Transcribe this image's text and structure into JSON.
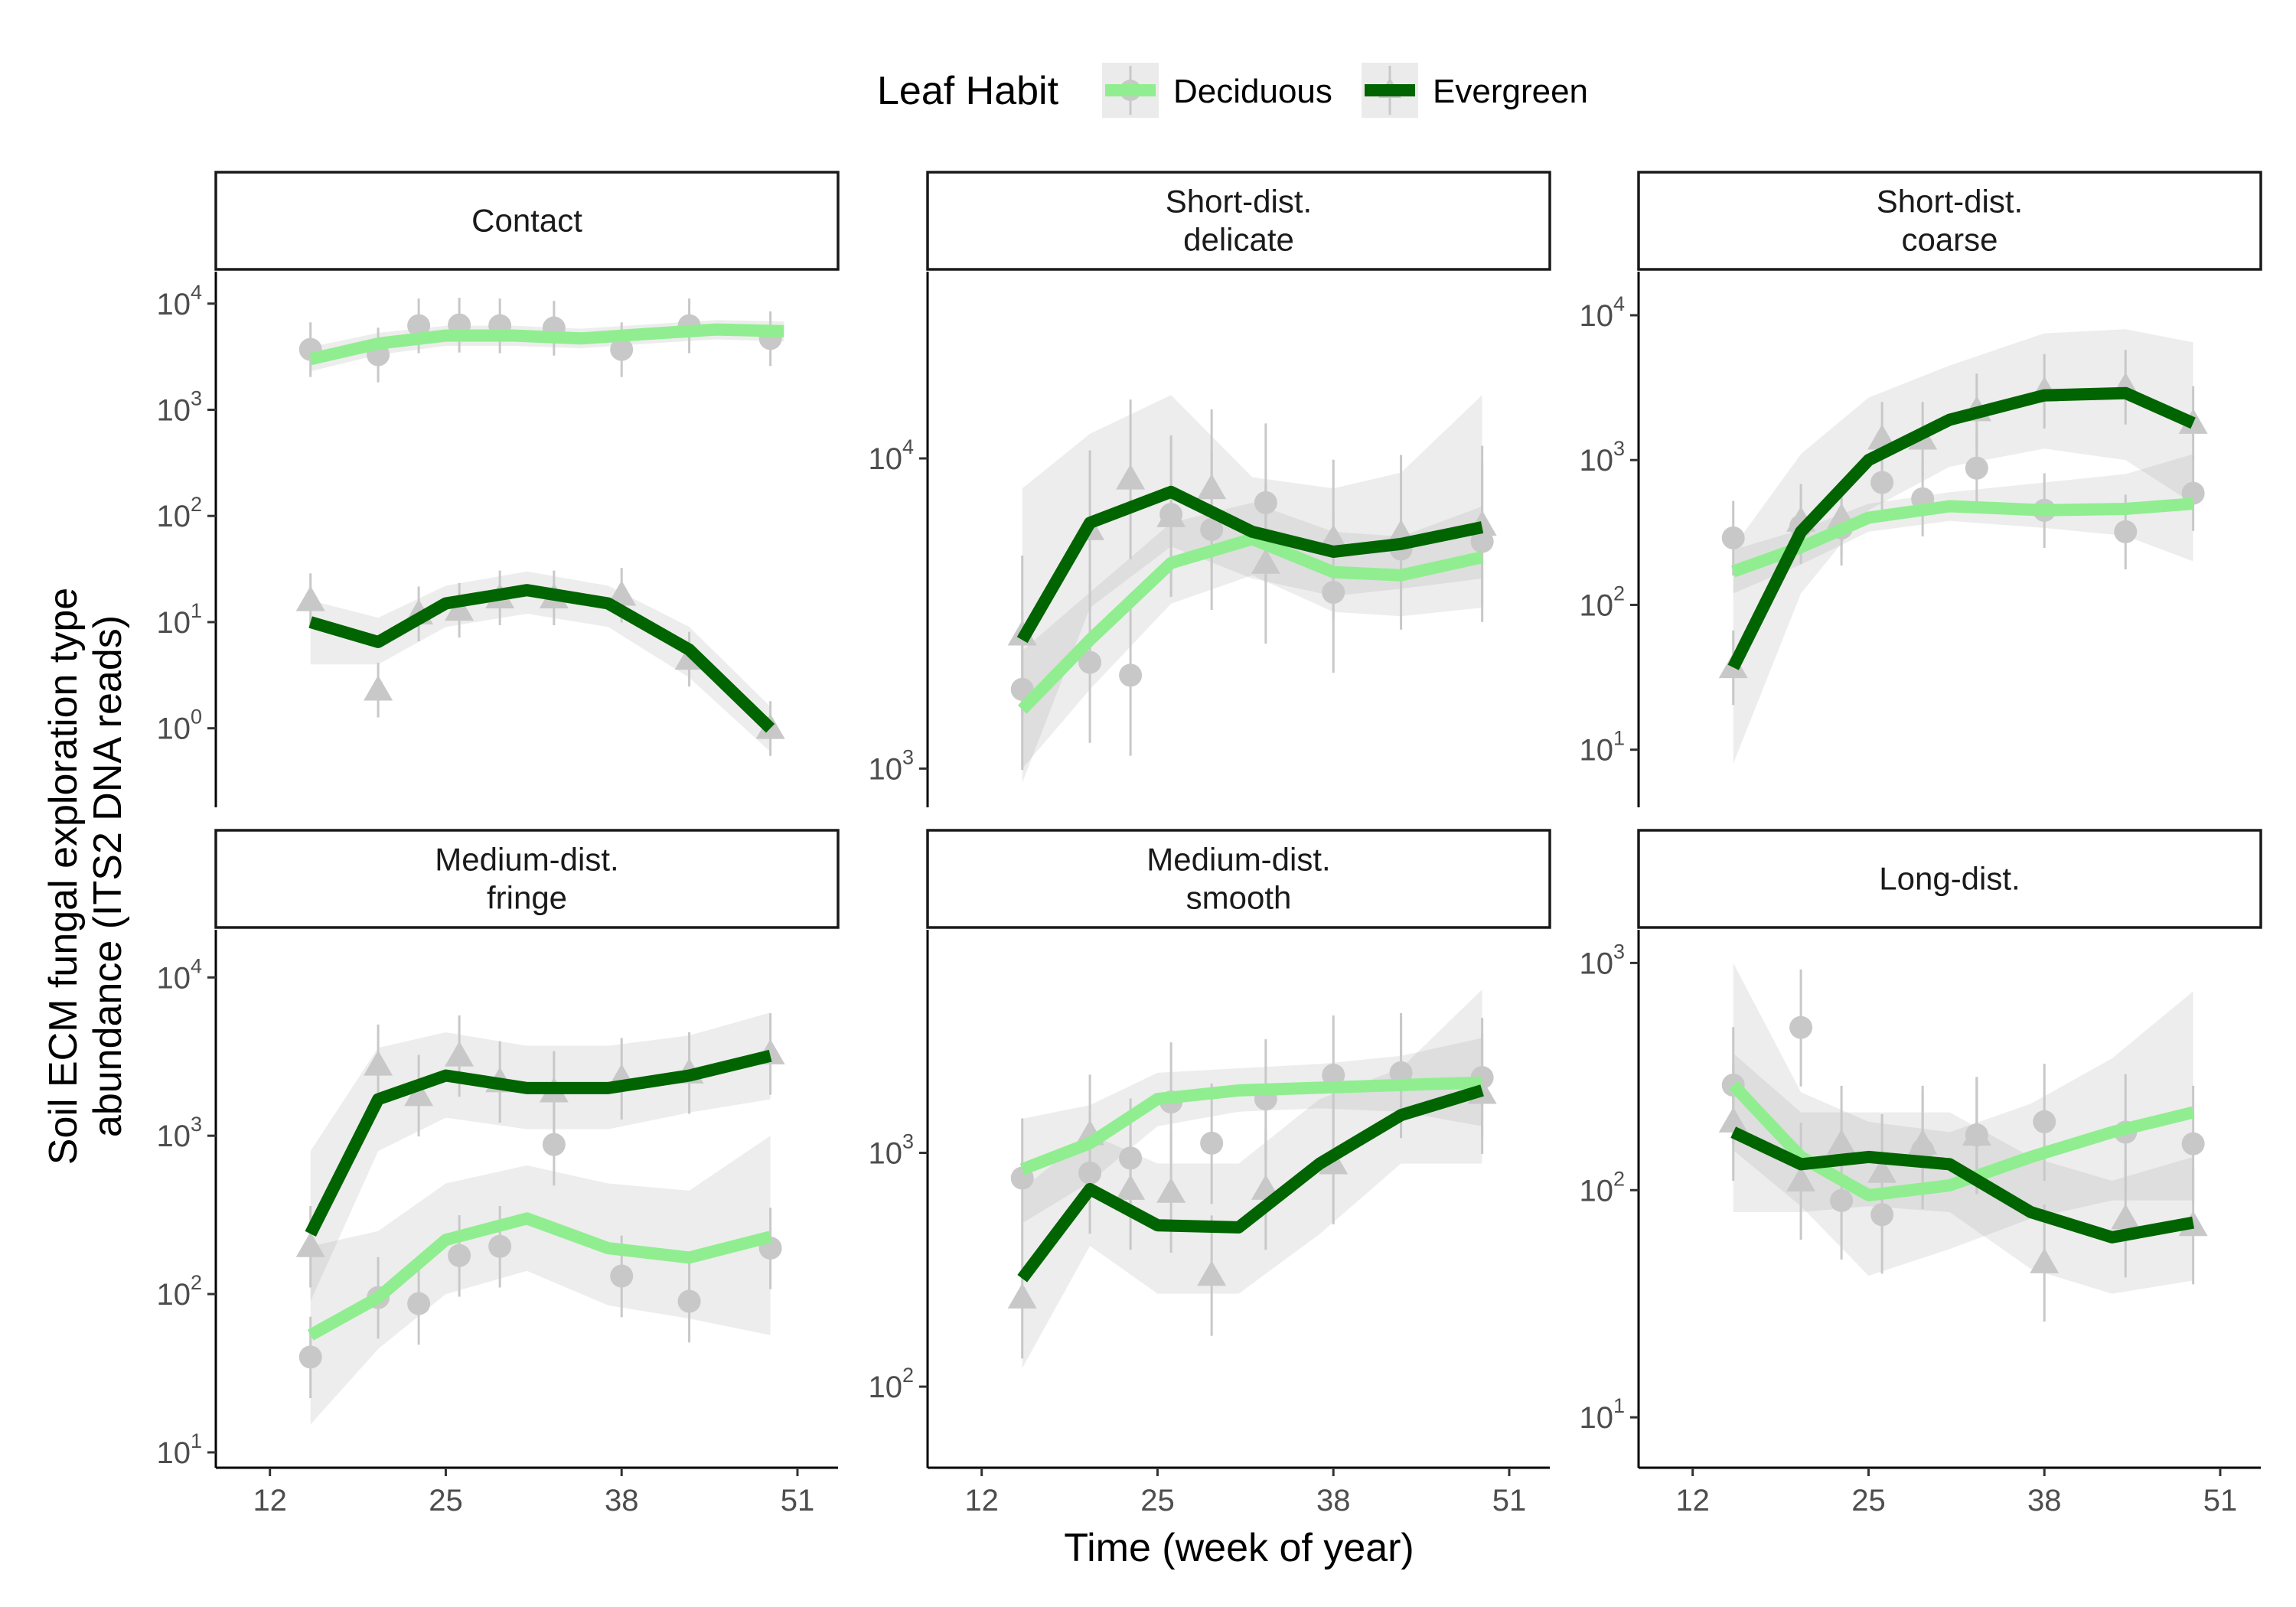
{
  "legend": {
    "title": "Leaf Habit",
    "entries": [
      {
        "name": "Deciduous",
        "color": "#90EE90",
        "shape": "circle"
      },
      {
        "name": "Evergreen",
        "color": "#006400",
        "shape": "triangle"
      }
    ]
  },
  "x_axis": {
    "label": "Time (week of year)",
    "ticks": [
      12,
      25,
      38,
      51
    ],
    "lim": [
      8,
      54
    ]
  },
  "y_axis": {
    "label_line1": "Soil ECM fungal exploration type",
    "label_line2": "abundance (ITS2 DNA reads)"
  },
  "chart_data": [
    {
      "type": "line",
      "title": "Contact",
      "log_scale_y": true,
      "ylim": [
        0.18,
        20000
      ],
      "yticks": [
        0,
        1,
        2,
        3,
        4
      ],
      "x": [
        15,
        20,
        25,
        30,
        35,
        40,
        45,
        50
      ],
      "series": [
        {
          "name": "Deciduous",
          "values": [
            3000,
            4200,
            5000,
            5000,
            4700,
            5200,
            5700,
            5500
          ],
          "band_low": [
            2300,
            3300,
            4000,
            4000,
            3800,
            4200,
            4600,
            4400
          ],
          "band_high": [
            3900,
            5300,
            6200,
            6200,
            5800,
            6400,
            7000,
            6800
          ],
          "points": [
            [
              15,
              3700
            ],
            [
              20,
              3300
            ],
            [
              23,
              6200
            ],
            [
              26,
              6300
            ],
            [
              29,
              6200
            ],
            [
              33,
              5900
            ],
            [
              38,
              3700
            ],
            [
              43,
              6200
            ],
            [
              49,
              4700
            ]
          ]
        },
        {
          "name": "Evergreen",
          "values": [
            10,
            6.5,
            15,
            20,
            15,
            5.5,
            1.0
          ],
          "x": [
            15,
            20,
            25,
            31,
            37,
            43,
            49
          ],
          "band_low": [
            4,
            4,
            9,
            12,
            9,
            3,
            0.6
          ],
          "band_high": [
            16,
            11,
            22,
            30,
            22,
            9,
            1.6
          ],
          "points": [
            [
              15,
              16
            ],
            [
              20,
              2.3
            ],
            [
              23,
              12
            ],
            [
              26,
              13
            ],
            [
              29,
              17
            ],
            [
              33,
              17
            ],
            [
              38,
              18
            ],
            [
              43,
              4.5
            ],
            [
              49,
              1.0
            ]
          ]
        }
      ]
    },
    {
      "type": "line",
      "title": "Short-dist.\ndelicate",
      "log_scale_y": true,
      "ylim": [
        750,
        40000
      ],
      "yticks": [
        3,
        4
      ],
      "x": [
        15,
        20,
        26,
        32,
        38,
        43,
        49
      ],
      "series": [
        {
          "name": "Deciduous",
          "values": [
            1550,
            2600,
            4600,
            5500,
            4300,
            4200,
            4800
          ],
          "band_low": [
            1000,
            1800,
            3400,
            4200,
            3200,
            3100,
            3300
          ],
          "band_high": [
            2400,
            3700,
            6200,
            7200,
            5800,
            5600,
            7000
          ],
          "points": [
            [
              15,
              1800
            ],
            [
              20,
              2200
            ],
            [
              23,
              2000
            ],
            [
              26,
              6600
            ],
            [
              29,
              5900
            ],
            [
              33,
              7200
            ],
            [
              38,
              3700
            ],
            [
              43,
              5100
            ],
            [
              49,
              5400
            ]
          ]
        },
        {
          "name": "Evergreen",
          "values": [
            2600,
            6200,
            7800,
            5800,
            5000,
            5300,
            6000
          ],
          "band_low": [
            900,
            3300,
            5200,
            4100,
            3600,
            3800,
            4100
          ],
          "band_high": [
            8000,
            12000,
            16000,
            8700,
            8000,
            9000,
            16000
          ],
          "points": [
            [
              15,
              2700
            ],
            [
              20,
              5900
            ],
            [
              23,
              8600
            ],
            [
              26,
              6500
            ],
            [
              29,
              8000
            ],
            [
              33,
              4600
            ],
            [
              38,
              5500
            ],
            [
              43,
              5700
            ],
            [
              49,
              6100
            ]
          ]
        }
      ]
    },
    {
      "type": "line",
      "title": "Short-dist.\ncoarse",
      "log_scale_y": true,
      "ylim": [
        4,
        20000
      ],
      "yticks": [
        1,
        2,
        3,
        4
      ],
      "x": [
        15,
        20,
        25,
        31,
        38,
        44,
        49
      ],
      "series": [
        {
          "name": "Deciduous",
          "values": [
            170,
            250,
            400,
            480,
            450,
            460,
            500
          ],
          "band_low": [
            120,
            190,
            320,
            380,
            340,
            300,
            200
          ],
          "band_high": [
            240,
            330,
            500,
            600,
            700,
            800,
            1100
          ],
          "points": [
            [
              15,
              290
            ],
            [
              20,
              350
            ],
            [
              23,
              340
            ],
            [
              26,
              700
            ],
            [
              29,
              540
            ],
            [
              33,
              880
            ],
            [
              38,
              450
            ],
            [
              44,
              320
            ],
            [
              49,
              590
            ]
          ]
        },
        {
          "name": "Evergreen",
          "values": [
            37,
            320,
            1000,
            1900,
            2800,
            2900,
            1800
          ],
          "band_low": [
            8,
            120,
            450,
            900,
            1200,
            1000,
            500
          ],
          "band_high": [
            250,
            1100,
            2700,
            4500,
            7500,
            8000,
            6500
          ],
          "points": [
            [
              15,
              37
            ],
            [
              20,
              380
            ],
            [
              23,
              400
            ],
            [
              26,
              1400
            ],
            [
              29,
              1400
            ],
            [
              33,
              2200
            ],
            [
              38,
              3000
            ],
            [
              44,
              3200
            ],
            [
              49,
              1800
            ]
          ]
        }
      ]
    },
    {
      "type": "line",
      "title": "Medium-dist.\nfringe",
      "log_scale_y": true,
      "ylim": [
        8,
        20000
      ],
      "yticks": [
        1,
        2,
        3,
        4
      ],
      "x": [
        15,
        20,
        25,
        31,
        37,
        43,
        49
      ],
      "series": [
        {
          "name": "Deciduous",
          "values": [
            55,
            95,
            220,
            300,
            195,
            170,
            230
          ],
          "band_low": [
            15,
            45,
            100,
            140,
            85,
            70,
            55
          ],
          "band_high": [
            200,
            250,
            500,
            650,
            500,
            450,
            1000
          ],
          "points": [
            [
              15,
              40
            ],
            [
              20,
              95
            ],
            [
              23,
              87
            ],
            [
              26,
              175
            ],
            [
              29,
              200
            ],
            [
              33,
              880
            ],
            [
              38,
              130
            ],
            [
              43,
              90
            ],
            [
              49,
              195
            ]
          ]
        },
        {
          "name": "Evergreen",
          "values": [
            240,
            1700,
            2400,
            2000,
            2000,
            2400,
            3200
          ],
          "band_low": [
            90,
            800,
            1300,
            1100,
            1100,
            1400,
            1700
          ],
          "band_high": [
            800,
            3600,
            4500,
            3700,
            3700,
            4300,
            6000
          ],
          "points": [
            [
              15,
              200
            ],
            [
              20,
              2800
            ],
            [
              23,
              1800
            ],
            [
              26,
              3200
            ],
            [
              29,
              2200
            ],
            [
              33,
              1900
            ],
            [
              38,
              2300
            ],
            [
              43,
              2500
            ],
            [
              49,
              3300
            ]
          ]
        }
      ]
    },
    {
      "type": "line",
      "title": "Medium-dist.\nsmooth",
      "log_scale_y": true,
      "ylim": [
        45,
        9000
      ],
      "yticks": [
        2,
        3
      ],
      "x": [
        15,
        20,
        25,
        31,
        37,
        43,
        49
      ],
      "series": [
        {
          "name": "Deciduous",
          "values": [
            850,
            1100,
            1700,
            1850,
            1900,
            1950,
            2000
          ],
          "band_low": [
            500,
            750,
            1300,
            1500,
            1550,
            1500,
            1300
          ],
          "band_high": [
            1400,
            1600,
            2200,
            2300,
            2400,
            2600,
            3100
          ],
          "points": [
            [
              15,
              780
            ],
            [
              20,
              820
            ],
            [
              23,
              950
            ],
            [
              26,
              1650
            ],
            [
              29,
              1100
            ],
            [
              33,
              1700
            ],
            [
              38,
              2150
            ],
            [
              43,
              2200
            ],
            [
              49,
              2100
            ]
          ]
        },
        {
          "name": "Evergreen",
          "values": [
            290,
            700,
            490,
            480,
            900,
            1450,
            1850
          ],
          "band_low": [
            120,
            400,
            250,
            250,
            450,
            900,
            900
          ],
          "band_high": [
            700,
            1200,
            900,
            900,
            1700,
            2300,
            5000
          ],
          "points": [
            [
              15,
              240
            ],
            [
              20,
              1200
            ],
            [
              23,
              700
            ],
            [
              26,
              680
            ],
            [
              29,
              300
            ],
            [
              33,
              700
            ],
            [
              38,
              900
            ],
            [
              43,
              2100
            ],
            [
              49,
              1800
            ]
          ]
        }
      ]
    },
    {
      "type": "line",
      "title": "Long-dist.",
      "log_scale_y": true,
      "ylim": [
        6,
        1400
      ],
      "yticks": [
        1,
        2,
        3
      ],
      "x": [
        15,
        20,
        25,
        31,
        37,
        43,
        49
      ],
      "series": [
        {
          "name": "Deciduous",
          "values": [
            290,
            140,
            95,
            105,
            140,
            180,
            220
          ],
          "band_low": [
            150,
            85,
            42,
            55,
            75,
            90,
            90
          ],
          "band_high": [
            1000,
            270,
            200,
            180,
            240,
            380,
            750
          ],
          "points": [
            [
              15,
              290
            ],
            [
              20,
              520
            ],
            [
              23,
              90
            ],
            [
              26,
              78
            ],
            [
              29,
              150
            ],
            [
              33,
              175
            ],
            [
              38,
              200
            ],
            [
              44,
              180
            ],
            [
              49,
              160
            ]
          ]
        },
        {
          "name": "Evergreen",
          "values": [
            180,
            130,
            140,
            130,
            80,
            62,
            72
          ],
          "band_low": [
            80,
            80,
            85,
            80,
            45,
            35,
            40
          ],
          "band_high": [
            400,
            220,
            220,
            220,
            140,
            110,
            140
          ],
          "points": [
            [
              15,
              200
            ],
            [
              20,
              110
            ],
            [
              23,
              160
            ],
            [
              26,
              120
            ],
            [
              29,
              160
            ],
            [
              33,
              175
            ],
            [
              38,
              48
            ],
            [
              44,
              75
            ],
            [
              49,
              70
            ]
          ]
        }
      ]
    }
  ]
}
